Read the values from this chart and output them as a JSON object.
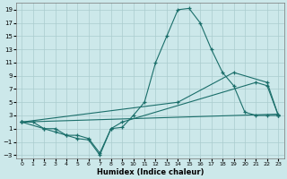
{
  "xlabel": "Humidex (Indice chaleur)",
  "bg_color": "#cce8ea",
  "grid_color": "#aaccce",
  "line_color": "#1a6e6a",
  "xlim": [
    -0.5,
    23.5
  ],
  "ylim": [
    -3.5,
    20
  ],
  "xticks": [
    0,
    1,
    2,
    3,
    4,
    5,
    6,
    7,
    8,
    9,
    10,
    11,
    12,
    13,
    14,
    15,
    16,
    17,
    18,
    19,
    20,
    21,
    22,
    23
  ],
  "yticks": [
    -3,
    -1,
    1,
    3,
    5,
    7,
    9,
    11,
    13,
    15,
    17,
    19
  ],
  "curve1_x": [
    0,
    1,
    2,
    3,
    4,
    5,
    6,
    7,
    8,
    9,
    10,
    11,
    12,
    13,
    14,
    15,
    16,
    17,
    18,
    19,
    20,
    21,
    22,
    23
  ],
  "curve1_y": [
    2,
    2,
    1,
    1,
    0,
    0,
    -0.5,
    -2.7,
    1,
    1.2,
    3,
    5,
    11,
    15,
    19,
    19.2,
    17,
    13,
    9.5,
    7.5,
    3.5,
    3,
    3,
    3
  ],
  "curve2_x": [
    0,
    2,
    3,
    4,
    5,
    6,
    7,
    8,
    9,
    21,
    22,
    23
  ],
  "curve2_y": [
    2,
    1,
    0.5,
    0,
    -0.5,
    -0.7,
    -3,
    1,
    2,
    8,
    7.5,
    3
  ],
  "line1_x": [
    0,
    14,
    19,
    22,
    23
  ],
  "line1_y": [
    2,
    5,
    9.5,
    8,
    3
  ],
  "line2_x": [
    0,
    23
  ],
  "line2_y": [
    2,
    3.2
  ]
}
